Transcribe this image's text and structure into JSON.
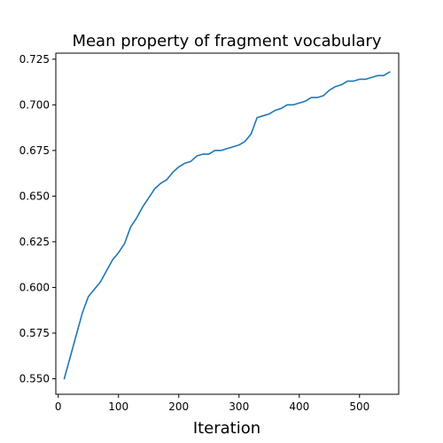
{
  "chart_data": {
    "type": "line",
    "title": "Mean property of fragment vocabulary",
    "xlabel": "Iteration",
    "ylabel": "",
    "xlim": [
      -4,
      565
    ],
    "ylim": [
      0.5415,
      0.7283
    ],
    "xticks": [
      0,
      100,
      200,
      300,
      400,
      500
    ],
    "yticks": [
      0.55,
      0.575,
      0.6,
      0.625,
      0.65,
      0.675,
      0.7,
      0.725
    ],
    "ytick_labels": [
      "0.550",
      "0.575",
      "0.600",
      "0.625",
      "0.650",
      "0.675",
      "0.700",
      "0.725"
    ],
    "grid": false,
    "color": "#1f77b4",
    "x": [
      10,
      20,
      30,
      40,
      50,
      60,
      70,
      80,
      90,
      100,
      110,
      120,
      130,
      140,
      150,
      160,
      170,
      180,
      190,
      200,
      210,
      220,
      230,
      240,
      250,
      260,
      270,
      280,
      290,
      300,
      310,
      320,
      330,
      340,
      350,
      360,
      370,
      380,
      390,
      400,
      410,
      420,
      430,
      440,
      450,
      460,
      470,
      480,
      490,
      500,
      510,
      520,
      530,
      540,
      550
    ],
    "y": [
      0.55,
      0.562,
      0.574,
      0.586,
      0.595,
      0.599,
      0.603,
      0.609,
      0.615,
      0.619,
      0.624,
      0.633,
      0.638,
      0.644,
      0.649,
      0.654,
      0.657,
      0.659,
      0.663,
      0.666,
      0.668,
      0.669,
      0.672,
      0.673,
      0.673,
      0.675,
      0.675,
      0.676,
      0.677,
      0.678,
      0.68,
      0.684,
      0.693,
      0.694,
      0.695,
      0.697,
      0.698,
      0.7,
      0.7,
      0.701,
      0.702,
      0.704,
      0.704,
      0.705,
      0.708,
      0.71,
      0.711,
      0.713,
      0.713,
      0.714,
      0.714,
      0.715,
      0.716,
      0.716,
      0.718
    ]
  }
}
